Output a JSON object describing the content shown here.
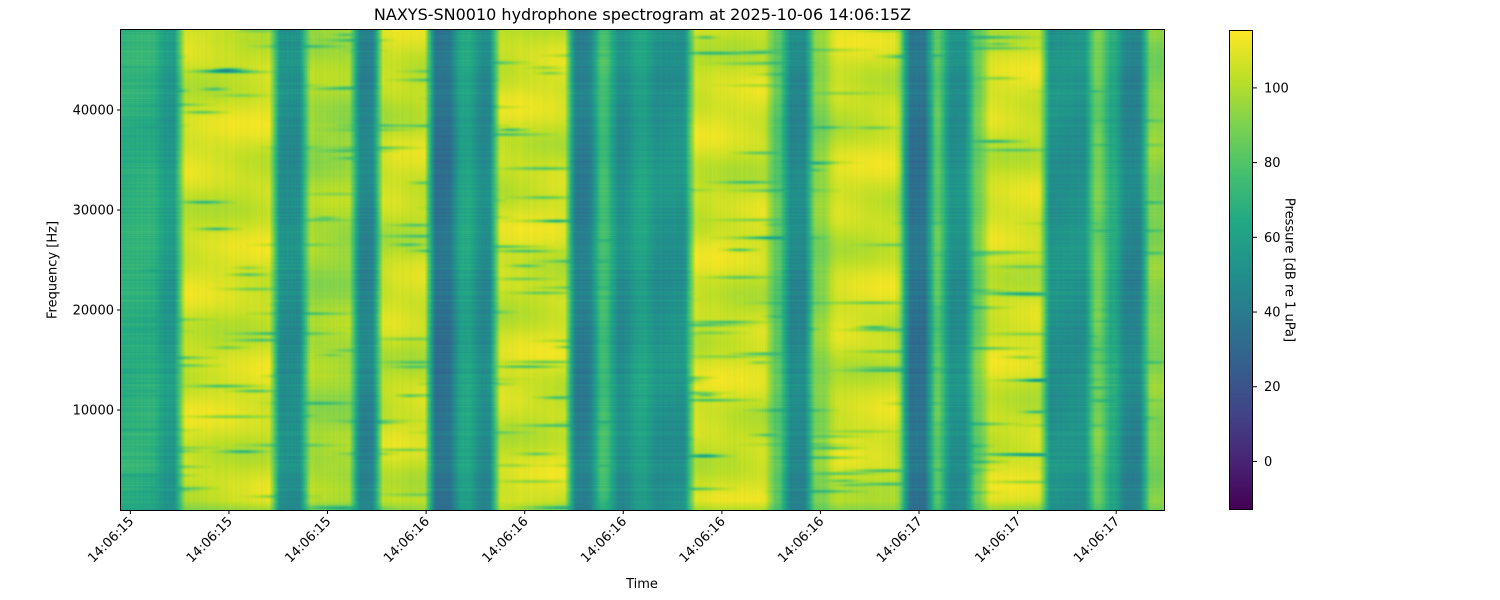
{
  "chart_data": {
    "type": "heatmap",
    "title": "NAXYS-SN0010 hydrophone spectrogram at 2025-10-06 14:06:15Z",
    "xlabel": "Time",
    "ylabel": "Frequency [Hz]",
    "x_tick_labels": [
      "14:06:15",
      "14:06:15",
      "14:06:15",
      "14:06:16",
      "14:06:16",
      "14:06:16",
      "14:06:16",
      "14:06:16",
      "14:06:17",
      "14:06:17",
      "14:06:17"
    ],
    "x_ticks_seconds": [
      15.4,
      15.6,
      15.8,
      16.0,
      16.2,
      16.4,
      16.6,
      16.8,
      17.0,
      17.2,
      17.4
    ],
    "xlim_seconds": [
      15.381,
      17.497
    ],
    "y_ticks": [
      10000,
      20000,
      30000,
      40000
    ],
    "y_tick_labels": [
      "10000",
      "20000",
      "30000",
      "40000"
    ],
    "ylim": [
      0,
      48000
    ],
    "colorbar": {
      "label": "Pressure [dB re 1 uPa]",
      "colormap": "viridis",
      "range": [
        -13,
        115.5
      ],
      "ticks": [
        0,
        20,
        40,
        60,
        80,
        100
      ],
      "tick_labels": [
        "0",
        "20",
        "40",
        "60",
        "80",
        "100"
      ]
    },
    "time_bands_db": [
      {
        "start": 15.381,
        "end": 15.46,
        "level": 68
      },
      {
        "start": 15.46,
        "end": 15.501,
        "level": 56
      },
      {
        "start": 15.501,
        "end": 15.694,
        "level": 106
      },
      {
        "start": 15.694,
        "end": 15.755,
        "level": 50
      },
      {
        "start": 15.755,
        "end": 15.856,
        "level": 97
      },
      {
        "start": 15.856,
        "end": 15.903,
        "level": 45
      },
      {
        "start": 15.903,
        "end": 16.008,
        "level": 105
      },
      {
        "start": 16.008,
        "end": 16.059,
        "level": 35
      },
      {
        "start": 16.059,
        "end": 16.099,
        "level": 62
      },
      {
        "start": 16.099,
        "end": 16.14,
        "level": 48
      },
      {
        "start": 16.14,
        "end": 16.292,
        "level": 106
      },
      {
        "start": 16.292,
        "end": 16.343,
        "level": 42
      },
      {
        "start": 16.343,
        "end": 16.377,
        "level": 76
      },
      {
        "start": 16.377,
        "end": 16.418,
        "level": 50
      },
      {
        "start": 16.418,
        "end": 16.454,
        "level": 62
      },
      {
        "start": 16.454,
        "end": 16.535,
        "level": 52
      },
      {
        "start": 16.535,
        "end": 16.698,
        "level": 106
      },
      {
        "start": 16.698,
        "end": 16.728,
        "level": 82
      },
      {
        "start": 16.728,
        "end": 16.779,
        "level": 47
      },
      {
        "start": 16.779,
        "end": 16.819,
        "level": 92
      },
      {
        "start": 16.819,
        "end": 16.961,
        "level": 106
      },
      {
        "start": 16.961,
        "end": 16.972,
        "level": 86
      },
      {
        "start": 16.972,
        "end": 17.022,
        "level": 35
      },
      {
        "start": 17.022,
        "end": 17.053,
        "level": 82
      },
      {
        "start": 17.053,
        "end": 17.103,
        "level": 50
      },
      {
        "start": 17.103,
        "end": 17.134,
        "level": 86
      },
      {
        "start": 17.134,
        "end": 17.256,
        "level": 106
      },
      {
        "start": 17.256,
        "end": 17.347,
        "level": 52
      },
      {
        "start": 17.347,
        "end": 17.377,
        "level": 88
      },
      {
        "start": 17.377,
        "end": 17.408,
        "level": 66
      },
      {
        "start": 17.408,
        "end": 17.458,
        "level": 45
      },
      {
        "start": 17.458,
        "end": 17.497,
        "level": 92
      }
    ],
    "grid": false
  }
}
